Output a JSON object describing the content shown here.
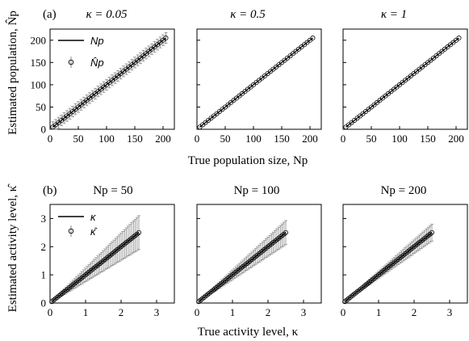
{
  "figure": {
    "row_a": {
      "panel_label": "(a)",
      "ylabel": "Estimated population, N̂p",
      "xlabel": "True population size, Np",
      "legend": {
        "line_label": "Np",
        "marker_label": "N̂p"
      },
      "subplot_titles": [
        "κ = 0.05",
        "κ = 0.5",
        "κ = 1"
      ]
    },
    "row_b": {
      "panel_label": "(b)",
      "ylabel": "Estimated activity level, κ̂",
      "xlabel": "True activity level, κ",
      "legend": {
        "line_label": "κ",
        "marker_label": "κ̂"
      },
      "subplot_titles": [
        "Np = 50",
        "Np = 100",
        "Np = 200"
      ]
    }
  },
  "chart_data": [
    {
      "type": "line",
      "title": "κ = 0.05",
      "xlim": [
        0,
        220
      ],
      "ylim": [
        0,
        225
      ],
      "xticks": [
        0,
        50,
        100,
        150,
        200
      ],
      "yticks": [
        0,
        50,
        100,
        150,
        200
      ],
      "x": {
        "start": 5,
        "end": 205,
        "count": 41
      },
      "series": [
        {
          "name": "Np",
          "kind": "line",
          "y_equals_x": true
        },
        {
          "name": "N̂p",
          "kind": "markers_errorbars",
          "y_equals_x": true,
          "error_halfwidth": 12
        }
      ]
    },
    {
      "type": "line",
      "title": "κ = 0.5",
      "xlim": [
        0,
        220
      ],
      "ylim": [
        0,
        225
      ],
      "xticks": [
        0,
        50,
        100,
        150,
        200
      ],
      "yticks": [
        0,
        50,
        100,
        150,
        200
      ],
      "x": {
        "start": 5,
        "end": 205,
        "count": 41
      },
      "series": [
        {
          "name": "Np",
          "kind": "line",
          "y_equals_x": true
        },
        {
          "name": "N̂p",
          "kind": "markers_errorbars",
          "y_equals_x": true,
          "error_halfwidth": 1
        }
      ]
    },
    {
      "type": "line",
      "title": "κ = 1",
      "xlim": [
        0,
        220
      ],
      "ylim": [
        0,
        225
      ],
      "xticks": [
        0,
        50,
        100,
        150,
        200
      ],
      "yticks": [
        0,
        50,
        100,
        150,
        200
      ],
      "x": {
        "start": 5,
        "end": 205,
        "count": 41
      },
      "series": [
        {
          "name": "Np",
          "kind": "line",
          "y_equals_x": true
        },
        {
          "name": "N̂p",
          "kind": "markers_errorbars",
          "y_equals_x": true,
          "error_halfwidth": 0.5
        }
      ]
    },
    {
      "type": "line",
      "title": "Np = 50",
      "xlim": [
        0,
        3.5
      ],
      "ylim": [
        0,
        3.5
      ],
      "xticks": [
        0,
        1,
        2,
        3
      ],
      "yticks": [
        0,
        1,
        2,
        3
      ],
      "x": {
        "start": 0.05,
        "end": 2.5,
        "count": 50
      },
      "series": [
        {
          "name": "κ",
          "kind": "line",
          "y_equals_x": true
        },
        {
          "name": "κ̂",
          "kind": "markers_errorbars",
          "y_equals_x": true,
          "error_relative": 0.24
        }
      ]
    },
    {
      "type": "line",
      "title": "Np = 100",
      "xlim": [
        0,
        3.5
      ],
      "ylim": [
        0,
        3.5
      ],
      "xticks": [
        0,
        1,
        2,
        3
      ],
      "yticks": [
        0,
        1,
        2,
        3
      ],
      "x": {
        "start": 0.05,
        "end": 2.5,
        "count": 50
      },
      "series": [
        {
          "name": "κ",
          "kind": "line",
          "y_equals_x": true
        },
        {
          "name": "κ̂",
          "kind": "markers_errorbars",
          "y_equals_x": true,
          "error_relative": 0.17
        }
      ]
    },
    {
      "type": "line",
      "title": "Np = 200",
      "xlim": [
        0,
        3.5
      ],
      "ylim": [
        0,
        3.5
      ],
      "xticks": [
        0,
        1,
        2,
        3
      ],
      "yticks": [
        0,
        1,
        2,
        3
      ],
      "x": {
        "start": 0.05,
        "end": 2.5,
        "count": 50
      },
      "series": [
        {
          "name": "κ",
          "kind": "line",
          "y_equals_x": true
        },
        {
          "name": "κ̂",
          "kind": "markers_errorbars",
          "y_equals_x": true,
          "error_relative": 0.12
        }
      ]
    }
  ]
}
